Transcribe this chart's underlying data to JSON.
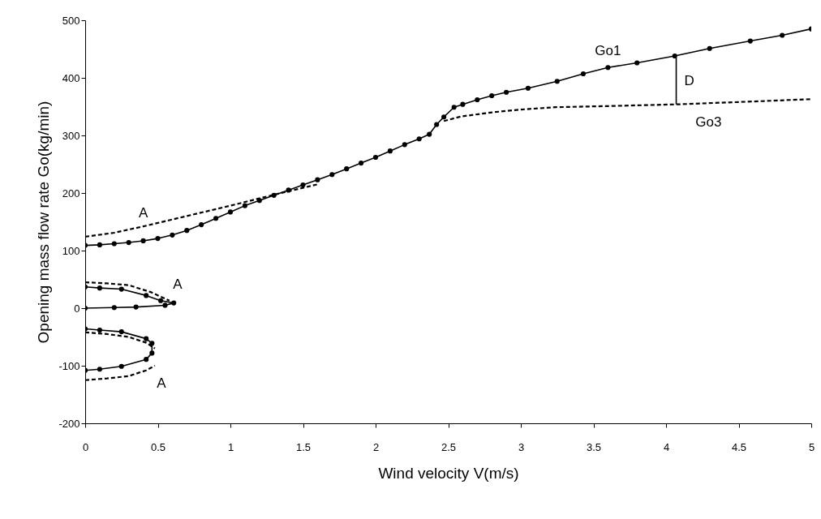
{
  "chart_data": {
    "type": "line",
    "xlabel": "Wind velocity V(m/s)",
    "ylabel": "Opening mass flow rate Go(kg/min)",
    "xlim": [
      0,
      5
    ],
    "xticks": [
      0,
      0.5,
      1,
      1.5,
      2,
      2.5,
      3,
      3.5,
      4,
      4.5,
      5
    ],
    "ylim": [
      -200,
      500
    ],
    "yticks": [
      -200,
      -100,
      0,
      100,
      200,
      300,
      400,
      500
    ],
    "grid": false,
    "series": [
      {
        "color": "#000000",
        "marker": "circle",
        "line_style": "solid",
        "x": [
          0,
          0.1,
          0.2,
          0.3,
          0.4,
          0.5,
          0.6,
          0.7,
          0.8,
          0.9,
          1.0,
          1.1,
          1.2,
          1.3,
          1.4,
          1.5,
          1.6,
          1.7,
          1.8,
          1.9,
          2.0,
          2.1,
          2.2,
          2.3,
          2.37,
          2.42,
          2.47,
          2.54,
          2.6,
          2.7,
          2.8,
          2.9,
          3.05,
          3.25,
          3.43,
          3.6,
          3.8,
          4.06,
          4.3,
          4.58,
          4.8,
          5.0
        ],
        "values": [
          109,
          110,
          112,
          114,
          117,
          121,
          127,
          135,
          145,
          156,
          167,
          178,
          187,
          196,
          205,
          214,
          223,
          232,
          242,
          252,
          262,
          273,
          284,
          294,
          302,
          319,
          332,
          349,
          354,
          362,
          369,
          375,
          382,
          394,
          407,
          418,
          426,
          438,
          451,
          464,
          474,
          485
        ]
      },
      {
        "color": "#000000",
        "marker": "circle",
        "line_style": "solid",
        "x": [
          0,
          0.1,
          0.25,
          0.42,
          0.52,
          0.61,
          0.55,
          0.35,
          0.2,
          0
        ],
        "values": [
          37,
          35,
          33,
          22,
          13,
          9,
          5,
          2,
          1,
          0
        ]
      },
      {
        "color": "#000000",
        "marker": "circle",
        "line_style": "solid",
        "x": [
          0,
          0.1,
          0.25,
          0.42,
          0.46,
          0.46,
          0.42,
          0.25,
          0.1,
          0
        ],
        "values": [
          -36,
          -38,
          -41,
          -53,
          -61,
          -78,
          -89,
          -101,
          -106,
          -108
        ]
      },
      {
        "color": "#000000",
        "marker": "none",
        "line_style": "dashed",
        "x": [
          0,
          0.2,
          0.4,
          0.7,
          1.0,
          1.3,
          1.6
        ],
        "values": [
          124,
          131,
          142,
          160,
          178,
          197,
          215
        ]
      },
      {
        "color": "#000000",
        "marker": "none",
        "line_style": "dashed",
        "x": [
          0,
          0.15,
          0.3,
          0.45,
          0.58
        ],
        "values": [
          45,
          43,
          40,
          28,
          13
        ]
      },
      {
        "color": "#000000",
        "marker": "none",
        "line_style": "dashed",
        "x": [
          0,
          0.15,
          0.3,
          0.42,
          0.48
        ],
        "values": [
          -42,
          -45,
          -50,
          -60,
          -70
        ]
      },
      {
        "color": "#000000",
        "marker": "none",
        "line_style": "dashed",
        "x": [
          0,
          0.15,
          0.3,
          0.42,
          0.48
        ],
        "values": [
          -125,
          -122,
          -118,
          -108,
          -100
        ]
      },
      {
        "color": "#000000",
        "marker": "none",
        "line_style": "dashed",
        "x": [
          2.47,
          2.59,
          2.8,
          3.0,
          3.24,
          3.6,
          4.08,
          4.5,
          5.0
        ],
        "values": [
          325,
          333,
          340,
          345,
          349,
          351,
          354,
          358,
          363
        ]
      },
      {
        "color": "#000000",
        "marker": "none",
        "line_style": "solid",
        "x": [
          4.07,
          4.07
        ],
        "values": [
          354,
          435
        ]
      }
    ],
    "annotations": [
      {
        "text": "Go1",
        "x": 3.6,
        "y": 418
      },
      {
        "text": "D",
        "x": 4.07,
        "y": 394
      },
      {
        "text": "Go3",
        "x": 4.08,
        "y": 354
      },
      {
        "text": "A",
        "x": 0.4,
        "y": 142
      },
      {
        "text": "A",
        "x": 0.58,
        "y": 13
      },
      {
        "text": "A",
        "x": 0.48,
        "y": -100
      }
    ]
  }
}
